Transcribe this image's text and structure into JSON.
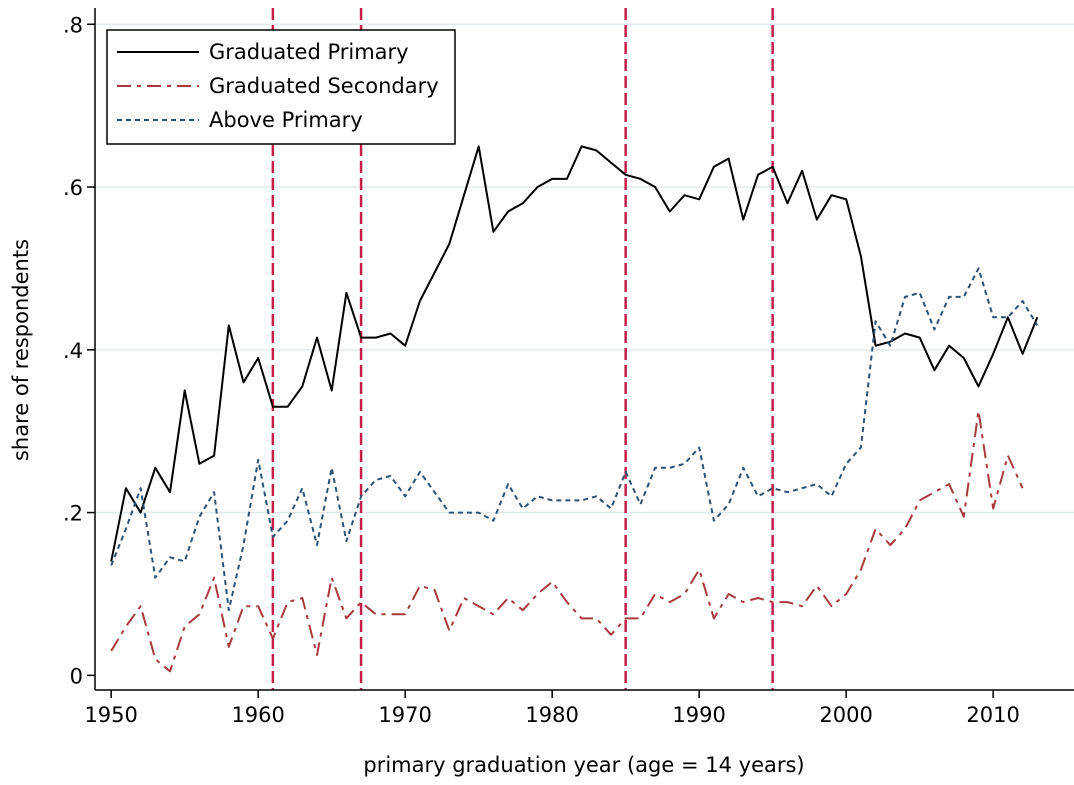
{
  "chart_data": {
    "type": "line",
    "xlabel": "primary graduation year (age = 14 years)",
    "ylabel": "share of respondents",
    "x": [
      1950,
      1951,
      1952,
      1953,
      1954,
      1955,
      1956,
      1957,
      1958,
      1959,
      1960,
      1961,
      1962,
      1963,
      1964,
      1965,
      1966,
      1967,
      1968,
      1969,
      1970,
      1971,
      1972,
      1973,
      1974,
      1975,
      1976,
      1977,
      1978,
      1979,
      1980,
      1981,
      1982,
      1983,
      1984,
      1985,
      1986,
      1987,
      1988,
      1989,
      1990,
      1991,
      1992,
      1993,
      1994,
      1995,
      1996,
      1997,
      1998,
      1999,
      2000,
      2001,
      2002,
      2003,
      2004,
      2005,
      2006,
      2007,
      2008,
      2009,
      2010,
      2011,
      2012,
      2013
    ],
    "series": [
      {
        "name": "Graduated Primary",
        "color": "#000000",
        "dash": "none",
        "values": [
          0.14,
          0.23,
          0.2,
          0.255,
          0.225,
          0.35,
          0.26,
          0.27,
          0.43,
          0.36,
          0.39,
          0.33,
          0.33,
          0.355,
          0.415,
          0.35,
          0.47,
          0.415,
          0.415,
          0.42,
          0.405,
          0.46,
          0.495,
          0.53,
          0.59,
          0.65,
          0.545,
          0.57,
          0.58,
          0.6,
          0.61,
          0.61,
          0.65,
          0.645,
          0.63,
          0.615,
          0.61,
          0.6,
          0.57,
          0.59,
          0.585,
          0.625,
          0.635,
          0.56,
          0.615,
          0.625,
          0.58,
          0.62,
          0.56,
          0.59,
          0.585,
          0.515,
          0.405,
          0.41,
          0.42,
          0.415,
          0.375,
          0.405,
          0.39,
          0.355,
          0.395,
          0.44,
          0.395,
          0.44
        ]
      },
      {
        "name": "Graduated Secondary",
        "color": "#a83a3f",
        "dash": "14 6 4 6",
        "values": [
          0.03,
          0.06,
          0.085,
          0.02,
          0.005,
          0.06,
          0.075,
          0.12,
          0.035,
          0.085,
          0.085,
          0.045,
          0.09,
          0.095,
          0.025,
          0.12,
          0.07,
          0.09,
          0.075,
          0.075,
          0.075,
          0.11,
          0.105,
          0.055,
          0.095,
          0.085,
          0.075,
          0.095,
          0.08,
          0.1,
          0.115,
          0.09,
          0.07,
          0.07,
          0.05,
          0.07,
          0.07,
          0.1,
          0.09,
          0.1,
          0.13,
          0.07,
          0.1,
          0.09,
          0.095,
          0.09,
          0.09,
          0.085,
          0.11,
          0.085,
          0.1,
          0.13,
          0.18,
          0.16,
          0.18,
          0.215,
          0.225,
          0.235,
          0.195,
          0.325,
          0.205,
          0.27,
          0.23,
          null
        ]
      },
      {
        "name": "Above Primary",
        "color": "#2b5275",
        "dash": "5 4",
        "values": [
          0.135,
          0.18,
          0.23,
          0.12,
          0.145,
          0.14,
          0.195,
          0.225,
          0.08,
          0.16,
          0.265,
          0.17,
          0.19,
          0.23,
          0.16,
          0.255,
          0.165,
          0.22,
          0.24,
          0.245,
          0.22,
          0.25,
          0.225,
          0.2,
          0.2,
          0.2,
          0.19,
          0.235,
          0.205,
          0.22,
          0.215,
          0.215,
          0.215,
          0.22,
          0.205,
          0.25,
          0.21,
          0.255,
          0.255,
          0.26,
          0.28,
          0.19,
          0.21,
          0.255,
          0.22,
          0.23,
          0.225,
          0.23,
          0.235,
          0.22,
          0.26,
          0.28,
          0.435,
          0.405,
          0.465,
          0.47,
          0.425,
          0.465,
          0.465,
          0.5,
          0.44,
          0.44,
          0.46,
          0.43
        ]
      }
    ],
    "vlines": [
      1961,
      1967,
      1985,
      1995
    ],
    "vline_color": "#c41e4a",
    "xlim": [
      1948.9,
      2015.5
    ],
    "xticks": [
      1950,
      1960,
      1970,
      1980,
      1990,
      2000,
      2010
    ],
    "ylim": [
      -0.018,
      0.82
    ],
    "yticks": [
      0,
      {
        "value": 0.2,
        "label": ".2"
      },
      {
        "value": 0.4,
        "label": ".4"
      },
      {
        "value": 0.6,
        "label": ".6"
      },
      {
        "value": 0.8,
        "label": ".8"
      }
    ],
    "grid": true,
    "legend": "upper left"
  }
}
